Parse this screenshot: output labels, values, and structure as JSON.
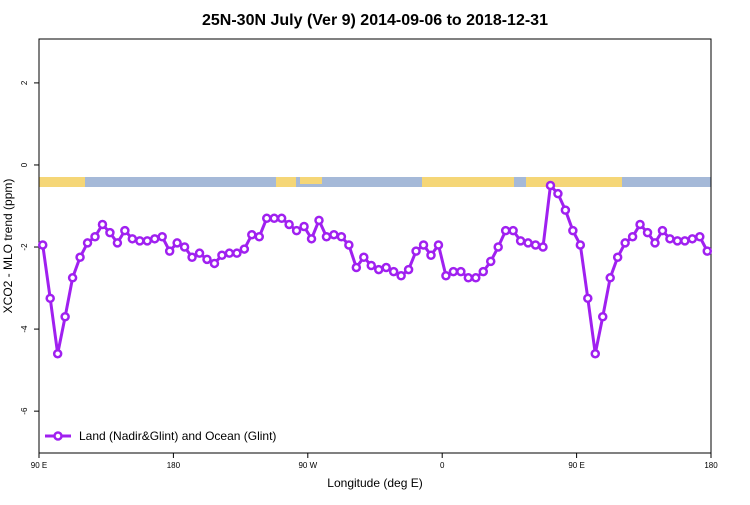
{
  "chart_data": {
    "type": "line",
    "title": "25N-30N July (Ver 9)   2014-09-06 to 2018-12-31",
    "x_label": "Longitude (deg E)",
    "y_label": "XCO2 - MLO trend (ppm)",
    "x": [
      92.5,
      97.5,
      102.5,
      107.5,
      112.5,
      117.5,
      122.5,
      127.5,
      132.5,
      137.5,
      142.5,
      147.5,
      152.5,
      157.5,
      162.5,
      167.5,
      172.5,
      177.5,
      182.5,
      187.5,
      192.5,
      197.5,
      202.5,
      207.5,
      212.5,
      217.5,
      222.5,
      227.5,
      232.5,
      237.5,
      242.5,
      247.5,
      252.5,
      257.5,
      262.5,
      267.5,
      272.5,
      277.5,
      282.5,
      287.5,
      292.5,
      297.5,
      302.5,
      307.5,
      312.5,
      317.5,
      322.5,
      327.5,
      332.5,
      337.5,
      342.5,
      347.5,
      352.5,
      357.5,
      362.5,
      367.5,
      372.5,
      377.5,
      382.5,
      387.5,
      392.5,
      397.5,
      402.5,
      407.5,
      412.5,
      417.5,
      422.5,
      427.5,
      432.5,
      437.5,
      442.5,
      447.5,
      452.5,
      457.5,
      462.5,
      467.5,
      472.5,
      477.5,
      482.5,
      487.5,
      492.5,
      497.5,
      502.5,
      507.5,
      512.5,
      517.5,
      522.5,
      527.5,
      532.5,
      537.5
    ],
    "series": [
      {
        "name": "Land (Nadir&Glint) and Ocean (Glint)",
        "color": "#a020f0",
        "values": [
          -1.95,
          -3.25,
          -4.6,
          -3.7,
          -2.75,
          -2.25,
          -1.9,
          -1.75,
          -1.45,
          -1.65,
          -1.9,
          -1.6,
          -1.8,
          -1.85,
          -1.85,
          -1.8,
          -1.75,
          -2.1,
          -1.9,
          -2.0,
          -2.25,
          -2.15,
          -2.3,
          -2.4,
          -2.2,
          -2.15,
          -2.15,
          -2.05,
          -1.7,
          -1.75,
          -1.3,
          -1.3,
          -1.3,
          -1.45,
          -1.6,
          -1.5,
          -1.8,
          -1.35,
          -1.75,
          -1.7,
          -1.75,
          -1.95,
          -2.5,
          -2.25,
          -2.45,
          -2.55,
          -2.5,
          -2.6,
          -2.7,
          -2.55,
          -2.1,
          -1.95,
          -2.2,
          -1.95,
          -2.7,
          -2.6,
          -2.6,
          -2.75,
          -2.75,
          -2.6,
          -2.35,
          -2.0,
          -1.6,
          -1.6,
          -1.85,
          -1.9,
          -1.95,
          -2.0,
          -0.5,
          -0.7,
          -1.1,
          -1.6,
          -1.95,
          -3.25,
          -4.6,
          -3.7,
          -2.75,
          -2.25,
          -1.9,
          -1.75,
          -1.45,
          -1.65,
          -1.9,
          -1.6,
          -1.8,
          -1.85,
          -1.85,
          -1.8,
          -1.75,
          -2.1
        ]
      }
    ],
    "xlim": [
      90,
      540
    ],
    "xticks": [
      {
        "value": 90,
        "label": "90 E"
      },
      180,
      {
        "value": 270,
        "label": "90 W"
      },
      {
        "value": 360,
        "label": "0"
      },
      {
        "value": 450,
        "label": "90 E"
      },
      {
        "value": 540,
        "label": "180"
      }
    ],
    "ylim": [
      -7.02,
      3.07
    ],
    "yticks": [
      -6,
      -4,
      -2,
      0,
      2
    ],
    "legend": "bottom-left"
  }
}
